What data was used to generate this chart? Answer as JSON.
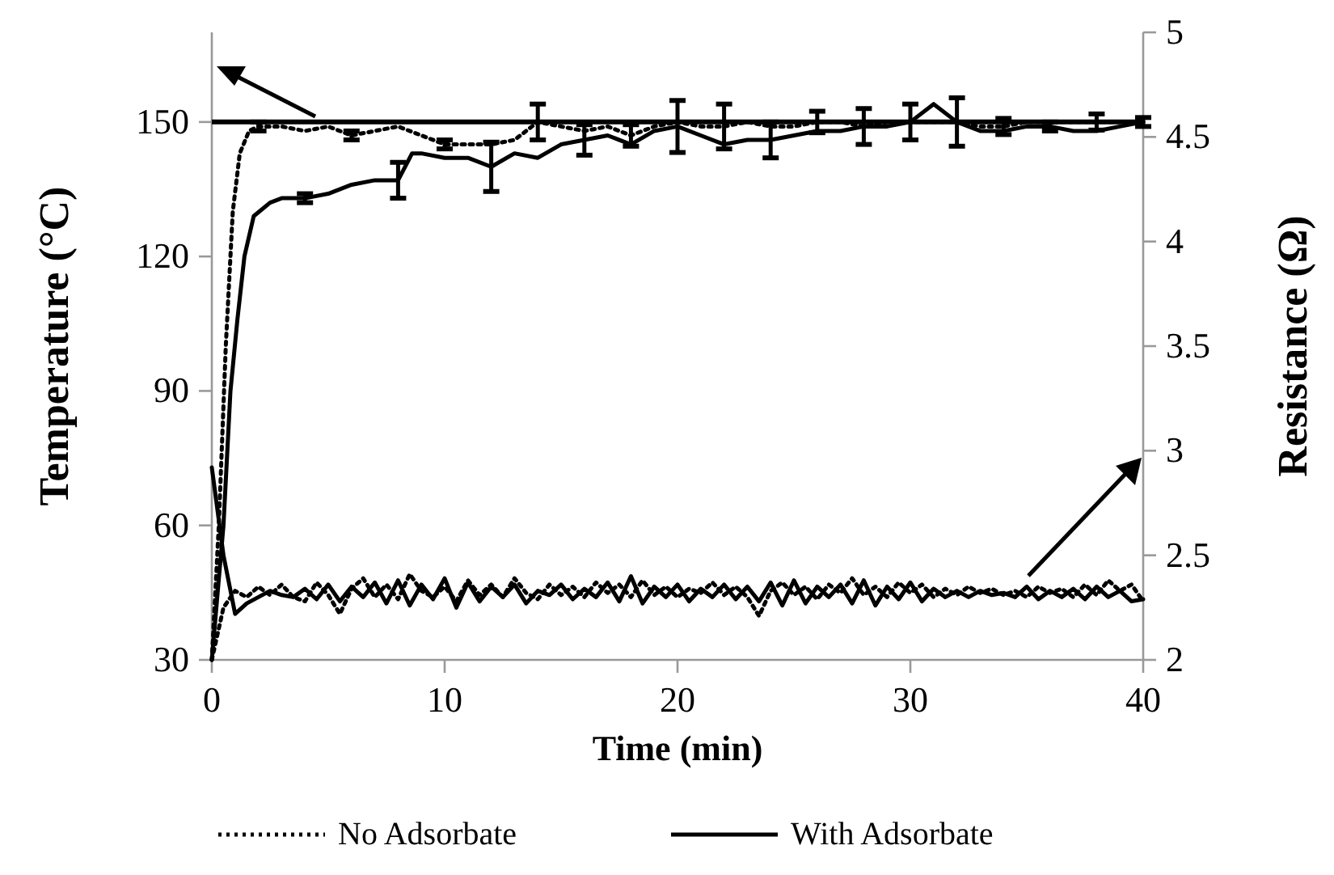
{
  "chart_data": {
    "type": "line",
    "xlabel": "Time (min)",
    "ylabel": "Temperature (°C)",
    "y2label": "Resistance (Ω)",
    "xlim": [
      0,
      40
    ],
    "xticks": [
      0,
      10,
      20,
      30,
      40
    ],
    "ylim": [
      30,
      170
    ],
    "yticks": [
      30,
      60,
      90,
      120,
      150
    ],
    "y2lim": [
      2,
      5
    ],
    "y2ticks": [
      2,
      2.5,
      3,
      3.5,
      4,
      4.5,
      5
    ],
    "legend": "bottom",
    "grid": false,
    "marker": "none",
    "ref_lines": [
      {
        "axis": "y",
        "value": 150,
        "color": "#000000",
        "line_style": "solid"
      }
    ],
    "series": [
      {
        "name": "No Adsorbate",
        "color": "#000000",
        "line_style": "dotted",
        "x": [
          0,
          0.3,
          0.6,
          0.9,
          1.2,
          1.6,
          2,
          3,
          4,
          5,
          6,
          7,
          8,
          9,
          10,
          11,
          12,
          13,
          14,
          15,
          16,
          17,
          18,
          19,
          20,
          21,
          22,
          23,
          24,
          25,
          26,
          27,
          28,
          29,
          30,
          31,
          32,
          33,
          34,
          35,
          36,
          37,
          38,
          39,
          40
        ],
        "values": [
          30,
          60,
          100,
          130,
          143,
          148,
          149,
          149,
          148,
          149,
          147,
          148,
          149,
          147,
          145,
          145,
          145,
          146,
          150,
          149,
          148,
          149,
          147,
          149,
          150,
          149,
          149,
          150,
          149,
          149,
          150,
          150,
          149,
          150,
          150,
          150,
          150,
          149,
          149,
          150,
          150,
          150,
          150,
          150,
          150
        ],
        "errors": [
          null,
          null,
          null,
          null,
          null,
          null,
          1,
          null,
          null,
          null,
          1,
          null,
          null,
          null,
          1,
          null,
          null,
          null,
          4,
          null,
          null,
          null,
          2.4,
          null,
          null,
          null,
          5,
          null,
          null,
          null,
          2.4,
          null,
          null,
          null,
          4,
          null,
          null,
          null,
          1.8,
          null,
          null,
          null,
          1.8,
          null,
          null
        ]
      },
      {
        "name": "With Adsorbate",
        "color": "#000000",
        "line_style": "solid",
        "x": [
          0,
          0.5,
          0.8,
          1.1,
          1.4,
          1.8,
          2.5,
          3,
          4,
          5,
          6,
          7,
          8,
          8.6,
          9,
          10,
          11,
          12,
          13,
          14,
          15,
          16,
          17,
          18,
          19,
          20,
          21,
          22,
          23,
          24,
          25,
          26,
          27,
          28,
          29,
          30,
          31,
          32,
          33,
          34,
          35,
          36,
          37,
          38,
          39,
          40
        ],
        "values": [
          30,
          60,
          90,
          106,
          120,
          129,
          132,
          133,
          133,
          134,
          136,
          137,
          137,
          143,
          143,
          142,
          142,
          140,
          143,
          142,
          145,
          146,
          147,
          145,
          148,
          149,
          147,
          145,
          146,
          146,
          147,
          148,
          148,
          149,
          149,
          150,
          154,
          150,
          148,
          148,
          149,
          149,
          148,
          148,
          149,
          150
        ],
        "errors": [
          null,
          null,
          null,
          null,
          null,
          null,
          null,
          null,
          1,
          null,
          null,
          null,
          4,
          null,
          null,
          null,
          null,
          5.5,
          null,
          null,
          null,
          3.4,
          null,
          null,
          null,
          5.8,
          null,
          null,
          null,
          4,
          null,
          null,
          null,
          4,
          null,
          null,
          null,
          5.4,
          null,
          null,
          null,
          1,
          null,
          null,
          null,
          1
        ]
      },
      {
        "color": "#000000",
        "line_style": "dotted",
        "axis": "y2",
        "x": [
          0,
          0.5,
          1,
          1.5,
          2,
          2.5,
          3,
          3.5,
          4,
          4.5,
          5,
          5.5,
          6,
          6.5,
          7,
          7.5,
          8,
          8.5,
          9,
          9.5,
          10,
          10.5,
          11,
          11.5,
          12,
          12.5,
          13,
          13.5,
          14,
          14.5,
          15,
          15.5,
          16,
          16.5,
          17,
          17.5,
          18,
          18.5,
          19,
          19.5,
          20,
          20.5,
          21,
          21.5,
          22,
          22.5,
          23,
          23.5,
          24,
          24.5,
          25,
          25.5,
          26,
          26.5,
          27,
          27.5,
          28,
          28.5,
          29,
          29.5,
          30,
          30.5,
          31,
          31.5,
          32,
          32.5,
          33,
          33.5,
          34,
          34.5,
          35,
          35.5,
          36,
          36.5,
          37,
          37.5,
          38,
          38.5,
          39,
          39.5,
          40
        ],
        "values": [
          2.0,
          2.25,
          2.33,
          2.3,
          2.35,
          2.31,
          2.36,
          2.3,
          2.28,
          2.37,
          2.31,
          2.22,
          2.34,
          2.39,
          2.3,
          2.36,
          2.29,
          2.41,
          2.33,
          2.3,
          2.35,
          2.28,
          2.38,
          2.31,
          2.36,
          2.3,
          2.39,
          2.32,
          2.29,
          2.36,
          2.31,
          2.35,
          2.3,
          2.37,
          2.32,
          2.36,
          2.3,
          2.38,
          2.31,
          2.35,
          2.3,
          2.34,
          2.32,
          2.37,
          2.31,
          2.35,
          2.3,
          2.21,
          2.33,
          2.37,
          2.31,
          2.35,
          2.29,
          2.36,
          2.32,
          2.39,
          2.31,
          2.35,
          2.3,
          2.37,
          2.32,
          2.36,
          2.3,
          2.34,
          2.31,
          2.35,
          2.32,
          2.34,
          2.31,
          2.33,
          2.3,
          2.35,
          2.32,
          2.34,
          2.3,
          2.36,
          2.31,
          2.38,
          2.33,
          2.36,
          2.28
        ]
      },
      {
        "color": "#000000",
        "line_style": "solid",
        "axis": "y2",
        "x": [
          0,
          0.5,
          1,
          1.5,
          2,
          2.5,
          3,
          3.5,
          4,
          4.5,
          5,
          5.5,
          6,
          6.5,
          7,
          7.5,
          8,
          8.5,
          9,
          9.5,
          10,
          10.5,
          11,
          11.5,
          12,
          12.5,
          13,
          13.5,
          14,
          14.5,
          15,
          15.5,
          16,
          16.5,
          17,
          17.5,
          18,
          18.5,
          19,
          19.5,
          20,
          20.5,
          21,
          21.5,
          22,
          22.5,
          23,
          23.5,
          24,
          24.5,
          25,
          25.5,
          26,
          26.5,
          27,
          27.5,
          28,
          28.5,
          29,
          29.5,
          30,
          30.5,
          31,
          31.5,
          32,
          32.5,
          33,
          33.5,
          34,
          34.5,
          35,
          35.5,
          36,
          36.5,
          37,
          37.5,
          38,
          38.5,
          39,
          39.5,
          40
        ],
        "values": [
          2.92,
          2.5,
          2.22,
          2.27,
          2.3,
          2.33,
          2.31,
          2.3,
          2.34,
          2.29,
          2.36,
          2.28,
          2.35,
          2.3,
          2.37,
          2.27,
          2.38,
          2.26,
          2.36,
          2.29,
          2.39,
          2.25,
          2.37,
          2.28,
          2.35,
          2.3,
          2.36,
          2.27,
          2.33,
          2.31,
          2.36,
          2.29,
          2.34,
          2.3,
          2.37,
          2.28,
          2.4,
          2.27,
          2.35,
          2.3,
          2.36,
          2.28,
          2.34,
          2.3,
          2.36,
          2.29,
          2.35,
          2.28,
          2.37,
          2.26,
          2.38,
          2.27,
          2.35,
          2.3,
          2.36,
          2.27,
          2.38,
          2.26,
          2.35,
          2.29,
          2.37,
          2.28,
          2.34,
          2.3,
          2.33,
          2.3,
          2.33,
          2.31,
          2.32,
          2.3,
          2.35,
          2.29,
          2.33,
          2.3,
          2.34,
          2.29,
          2.35,
          2.3,
          2.33,
          2.28,
          2.29
        ]
      }
    ]
  }
}
